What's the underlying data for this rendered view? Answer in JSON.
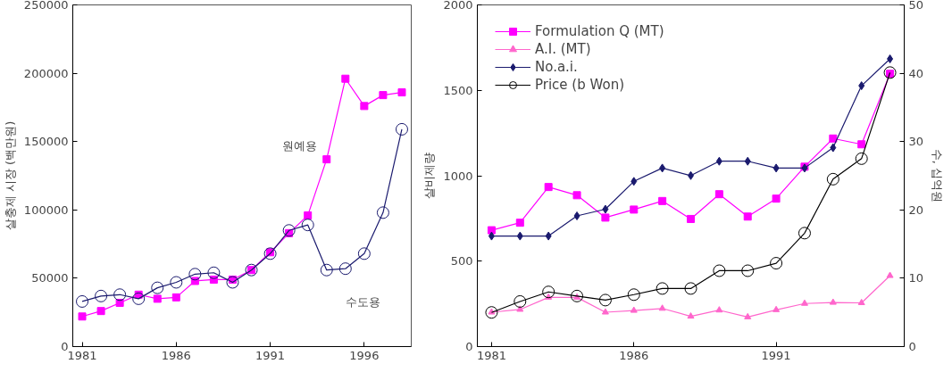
{
  "chart_data": [
    {
      "type": "line",
      "ylabel": "살충제 시장 (백만원)",
      "x": [
        1981,
        1982,
        1983,
        1984,
        1985,
        1986,
        1987,
        1988,
        1989,
        1990,
        1991,
        1992,
        1993,
        1994,
        1995,
        1996,
        1997,
        1998
      ],
      "series": [
        {
          "name": "원예용",
          "color": "#ff00ff",
          "marker": "square",
          "values": [
            22000,
            26000,
            32000,
            38000,
            35000,
            36000,
            48000,
            49000,
            49000,
            56000,
            69000,
            83000,
            96000,
            137000,
            196000,
            176000,
            184000,
            186000
          ]
        },
        {
          "name": "수도용",
          "color": "#1a1a6e",
          "marker": "circle",
          "values": [
            33000,
            37000,
            38000,
            35000,
            43000,
            47000,
            53000,
            54000,
            47000,
            56000,
            68000,
            85000,
            89000,
            56000,
            57000,
            68000,
            98000,
            159000
          ]
        }
      ],
      "xlim": [
        1980.5,
        1998.5
      ],
      "xticks": [
        1981,
        1986,
        1991,
        1996
      ],
      "ylim": [
        0,
        250000
      ],
      "yticks": [
        0,
        50000,
        100000,
        150000,
        200000,
        250000
      ],
      "grid": false,
      "legend": false
    },
    {
      "type": "line",
      "ylabel": "살비제량",
      "y2label": "수, 십억원",
      "x": [
        1981,
        1982,
        1983,
        1984,
        1985,
        1986,
        1987,
        1988,
        1989,
        1990,
        1991,
        1992,
        1993,
        1994,
        1995
      ],
      "series": [
        {
          "name": "Formulation Q (MT)",
          "color": "#ff00ff",
          "marker": "square",
          "values": [
            681,
            725,
            934,
            886,
            755,
            802,
            852,
            747,
            892,
            761,
            866,
            1053,
            1218,
            1184,
            1597
          ]
        },
        {
          "name": "A.I. (MT)",
          "color": "#ff66cc",
          "marker": "triangle",
          "values": [
            201,
            217,
            288,
            288,
            201,
            211,
            223,
            177,
            213,
            173,
            215,
            252,
            258,
            256,
            415
          ]
        },
        {
          "name": "No.a.i.",
          "color": "#1a1a6e",
          "marker": "diamond",
          "values": [
            647,
            647,
            647,
            765,
            804,
            967,
            1045,
            1001,
            1085,
            1085,
            1045,
            1045,
            1164,
            1527,
            1684
          ]
        },
        {
          "name": "Price (b Won)",
          "color": "#000000",
          "marker": "circle",
          "axis": "y2",
          "values": [
            5.0,
            6.6,
            8.0,
            7.4,
            6.8,
            7.6,
            8.5,
            8.5,
            11.1,
            11.1,
            12.2,
            16.6,
            24.5,
            27.5,
            40.1
          ]
        }
      ],
      "xlim": [
        1980.5,
        1995.5
      ],
      "xticks": [
        1981,
        1986,
        1991
      ],
      "ylim": [
        0,
        2000
      ],
      "yticks": [
        0,
        500,
        1000,
        1500,
        2000
      ],
      "y2lim": [
        0,
        50
      ],
      "y2ticks": [
        0,
        10,
        20,
        30,
        40,
        50
      ],
      "grid": false,
      "legend": "top left"
    }
  ]
}
